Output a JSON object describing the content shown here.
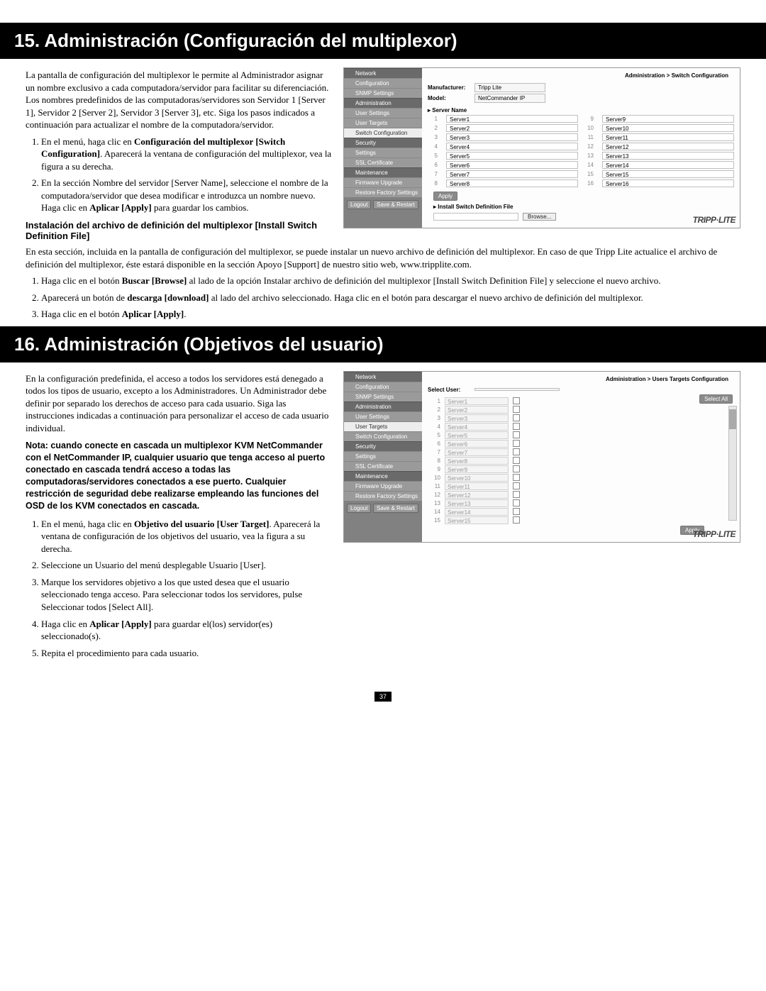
{
  "page_number": "37",
  "section15": {
    "heading": "15. Administración (Configuración del multiplexor)",
    "intro": "La pantalla de configuración del multiplexor le permite al Administrador asignar un nombre exclusivo a cada computadora/servidor para facilitar su diferenciación. Los nombres predefinidos de las computadoras/servidores son Servidor 1 [Server 1], Servidor 2 [Server 2], Servidor 3 [Server 3], etc. Siga los pasos indicados a continuación para actualizar el nombre de la computadora/servidor.",
    "step1_pre": "En el menú, haga clic en ",
    "step1_bold": "Configuración del multiplexor [Switch Configuration]",
    "step1_post": ". Aparecerá la ventana de configuración del multiplexor, vea la figura a su derecha.",
    "step2_pre": "En la sección Nombre del servidor [Server Name], seleccione el nombre de la computadora/servidor que desea modificar e introduzca un nombre nuevo. Haga clic en ",
    "step2_bold": "Aplicar [Apply]",
    "step2_post": " para guardar los cambios.",
    "subhead": "Instalación del archivo de definición del multiplexor [Install Switch Definition File]",
    "p2": "En esta sección, incluida en la pantalla de configuración del multiplexor, se puede instalar un nuevo archivo de definición del multiplexor. En caso de que Tripp Lite actualice el archivo de definición del multiplexor, éste estará disponible en la sección Apoyo [Support] de nuestro sitio web, www.tripplite.com.",
    "sub_step1_pre": "Haga clic en el botón ",
    "sub_step1_bold": "Buscar [Browse]",
    "sub_step1_post": " al lado de la opción Instalar archivo de definición del multiplexor [Install Switch Definition File] y seleccione el nuevo archivo.",
    "sub_step2_pre": "Aparecerá un botón de ",
    "sub_step2_bold": "descarga [download]",
    "sub_step2_post": " al lado del archivo seleccionado. Haga clic en el botón para descargar el nuevo archivo de definición del multiplexor.",
    "sub_step3_pre": "Haga clic en el botón ",
    "sub_step3_bold": "Aplicar [Apply]",
    "sub_step3_post": "."
  },
  "panel1": {
    "crumb": "Administration > Switch Configuration",
    "sidebar": {
      "sections": [
        {
          "label": "Network",
          "items": [
            "Configuration",
            "SNMP Settings"
          ]
        },
        {
          "label": "Administration",
          "items": [
            "User Settings",
            "User Targets",
            "Switch Configuration"
          ],
          "active": 2
        },
        {
          "label": "Security",
          "items": [
            "Settings",
            "SSL Certificate"
          ]
        },
        {
          "label": "Maintenance",
          "items": [
            "Firmware Upgrade",
            "Restore Factory Settings"
          ]
        }
      ],
      "logout": "Logout",
      "save": "Save & Restart"
    },
    "manufacturer_label": "Manufacturer:",
    "manufacturer_value": "Tripp Lite",
    "model_label": "Model:",
    "model_value": "NetCommander IP",
    "server_name_label": "▸ Server Name",
    "servers_left": [
      {
        "i": "1",
        "n": "Server1"
      },
      {
        "i": "2",
        "n": "Server2"
      },
      {
        "i": "3",
        "n": "Server3"
      },
      {
        "i": "4",
        "n": "Server4"
      },
      {
        "i": "5",
        "n": "Server5"
      },
      {
        "i": "6",
        "n": "Server6"
      },
      {
        "i": "7",
        "n": "Server7"
      },
      {
        "i": "8",
        "n": "Server8"
      }
    ],
    "servers_right": [
      {
        "i": "9",
        "n": "Server9"
      },
      {
        "i": "10",
        "n": "Server10"
      },
      {
        "i": "11",
        "n": "Server11"
      },
      {
        "i": "12",
        "n": "Server12"
      },
      {
        "i": "13",
        "n": "Server13"
      },
      {
        "i": "14",
        "n": "Server14"
      },
      {
        "i": "15",
        "n": "Server15"
      },
      {
        "i": "16",
        "n": "Server16"
      }
    ],
    "apply": "Apply",
    "install_label": "▸ Install Switch Definition File",
    "browse": "Browse...",
    "logo": "TRIPP·LITE"
  },
  "section16": {
    "heading": "16. Administración (Objetivos del usuario)",
    "intro": "En la configuración predefinida, el acceso a todos los servidores está denegado a todos los tipos de usuario, excepto a los Administradores. Un Administrador debe definir por separado los derechos de acceso para cada usuario. Siga las instrucciones indicadas a continuación para personalizar el acceso de cada usuario individual.",
    "note": "Nota: cuando conecte en cascada un multiplexor KVM NetCommander con el NetCommander IP, cualquier usuario que tenga acceso al puerto conectado en cascada tendrá acceso a todas las computadoras/servidores conectados a ese puerto. Cualquier restricción de seguridad debe realizarse empleando las funciones del OSD de los KVM conectados en cascada.",
    "step1_pre": "En el menú, haga clic en ",
    "step1_bold": "Objetivo del usuario [User Target]",
    "step1_post": ". Aparecerá la ventana de configuración de los objetivos del usuario, vea la figura a su derecha.",
    "step2": "Seleccione un Usuario del menú desplegable Usuario [User].",
    "step3": "Marque los servidores objetivo a los que usted desea que el usuario seleccionado tenga acceso. Para seleccionar todos los servidores, pulse Seleccionar todos [Select All].",
    "step4_pre": "Haga clic en ",
    "step4_bold": "Aplicar [Apply]",
    "step4_post": " para guardar el(los) servidor(es) seleccionado(s).",
    "step5": "Repita el procedimiento para cada usuario."
  },
  "panel2": {
    "crumb": "Administration > Users Targets Configuration",
    "sidebar": {
      "sections": [
        {
          "label": "Network",
          "items": [
            "Configuration",
            "SNMP Settings"
          ]
        },
        {
          "label": "Administration",
          "items": [
            "User Settings",
            "User Targets",
            "Switch Configuration"
          ],
          "active": 1
        },
        {
          "label": "Security",
          "items": [
            "Settings",
            "SSL Certificate"
          ]
        },
        {
          "label": "Maintenance",
          "items": [
            "Firmware Upgrade",
            "Restore Factory Settings"
          ]
        }
      ],
      "logout": "Logout",
      "save": "Save & Restart"
    },
    "select_user_label": "Select User:",
    "servers": [
      {
        "i": "1",
        "n": "Server1"
      },
      {
        "i": "2",
        "n": "Server2"
      },
      {
        "i": "3",
        "n": "Server3"
      },
      {
        "i": "4",
        "n": "Server4"
      },
      {
        "i": "5",
        "n": "Server5"
      },
      {
        "i": "6",
        "n": "Server6"
      },
      {
        "i": "7",
        "n": "Server7"
      },
      {
        "i": "8",
        "n": "Server8"
      },
      {
        "i": "9",
        "n": "Server9"
      },
      {
        "i": "10",
        "n": "Server10"
      },
      {
        "i": "11",
        "n": "Server11"
      },
      {
        "i": "12",
        "n": "Server12"
      },
      {
        "i": "13",
        "n": "Server13"
      },
      {
        "i": "14",
        "n": "Server14"
      },
      {
        "i": "15",
        "n": "Server15"
      }
    ],
    "select_all": "Select All",
    "apply": "Apply",
    "logo": "TRIPP·LITE"
  }
}
